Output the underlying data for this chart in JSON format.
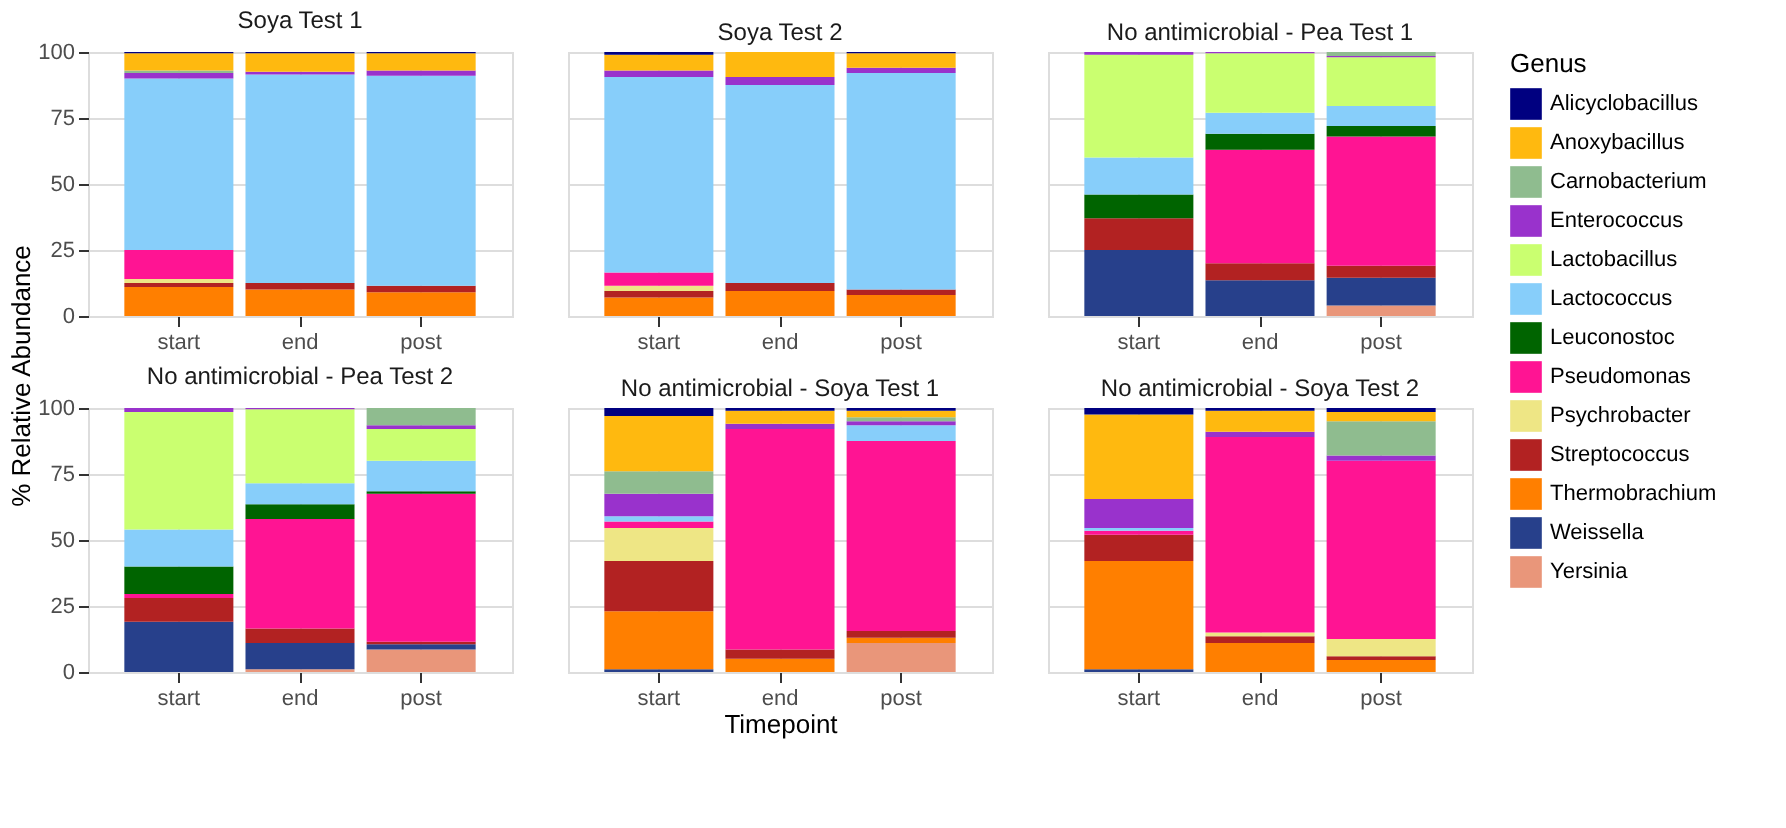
{
  "chart_data": [
    {
      "type": "bar",
      "stacked": true,
      "title": "Soya Test 1",
      "ylabel": "% Relative Abundance",
      "legend_title": "Genus",
      "legend": "right",
      "grid": true,
      "categories": [
        "start",
        "end",
        "post"
      ],
      "ylim": [
        0,
        100
      ],
      "yticks": [
        0,
        25,
        50,
        75,
        100
      ],
      "series": [
        {
          "name": "Yersinia",
          "color": "#e9967a",
          "values": [
            null,
            null,
            null
          ]
        },
        {
          "name": "Weissella",
          "color": "#27408b",
          "values": [
            null,
            null,
            null
          ]
        },
        {
          "name": "Thermobrachium",
          "color": "#ff7f00",
          "values": [
            11,
            10,
            9
          ]
        },
        {
          "name": "Streptococcus",
          "color": "#b22222",
          "values": [
            1.5,
            2.5,
            2.5
          ]
        },
        {
          "name": "Psychrobacter",
          "color": "#eee685",
          "values": [
            1.5,
            null,
            null
          ]
        },
        {
          "name": "Pseudomonas",
          "color": "#ff1493",
          "values": [
            11,
            null,
            null
          ]
        },
        {
          "name": "Leuconostoc",
          "color": "#006400",
          "values": [
            null,
            null,
            null
          ]
        },
        {
          "name": "Lactococcus",
          "color": "#87cefa",
          "values": [
            65,
            79,
            79.5
          ]
        },
        {
          "name": "Lactobacillus",
          "color": "#caff70",
          "values": [
            null,
            null,
            null
          ]
        },
        {
          "name": "Enterococcus",
          "color": "#9932cc",
          "values": [
            2,
            1,
            2
          ]
        },
        {
          "name": "Carnobacterium",
          "color": "#8fbc8f",
          "values": [
            1,
            null,
            null
          ]
        },
        {
          "name": "Anoxybacillus",
          "color": "#ffb90f",
          "values": [
            6.5,
            7,
            6.5
          ]
        },
        {
          "name": "Alicyclobacillus",
          "color": "#000080",
          "values": [
            0.5,
            0.5,
            0.5
          ]
        }
      ]
    },
    {
      "type": "bar",
      "stacked": true,
      "title": "Soya Test 2",
      "grid": true,
      "tick_labels": "x",
      "categories": [
        "start",
        "end",
        "post"
      ],
      "ylim": [
        0,
        100
      ],
      "yticks": [
        0,
        25,
        50,
        75,
        100
      ],
      "series": [
        {
          "color": "#ff7f00",
          "values": [
            7,
            9.5,
            8
          ]
        },
        {
          "color": "#b22222",
          "values": [
            2.5,
            3,
            2
          ]
        },
        {
          "color": "#eee685",
          "values": [
            2,
            null,
            null
          ]
        },
        {
          "color": "#ff1493",
          "values": [
            5,
            null,
            null
          ]
        },
        {
          "color": "#87cefa",
          "values": [
            74,
            75,
            82
          ]
        },
        {
          "color": "#9932cc",
          "values": [
            2.5,
            3,
            2
          ]
        },
        {
          "color": "#ffb90f",
          "values": [
            6,
            9.5,
            5.5
          ]
        },
        {
          "color": "#000080",
          "values": [
            1,
            null,
            0.5
          ]
        }
      ]
    },
    {
      "type": "bar",
      "stacked": true,
      "title": "No antimicrobial - Pea Test 1",
      "grid": true,
      "tick_labels": "x",
      "categories": [
        "start",
        "end",
        "post"
      ],
      "ylim": [
        0,
        100
      ],
      "yticks": [
        0,
        25,
        50,
        75,
        100
      ],
      "series": [
        {
          "color": "#e9967a",
          "values": [
            null,
            null,
            4
          ]
        },
        {
          "color": "#27408b",
          "values": [
            25,
            13.5,
            10.5
          ]
        },
        {
          "color": "#b22222",
          "values": [
            12,
            6.5,
            4.5
          ]
        },
        {
          "color": "#ff1493",
          "values": [
            null,
            43,
            49
          ]
        },
        {
          "color": "#006400",
          "values": [
            9,
            6,
            4
          ]
        },
        {
          "color": "#87cefa",
          "values": [
            14,
            8,
            7.5
          ]
        },
        {
          "color": "#caff70",
          "values": [
            39,
            22.5,
            18.5
          ]
        },
        {
          "color": "#9932cc",
          "values": [
            1,
            0.5,
            0.5
          ]
        },
        {
          "color": "#8fbc8f",
          "values": [
            null,
            null,
            1.5
          ]
        }
      ]
    },
    {
      "type": "bar",
      "stacked": true,
      "title": "No antimicrobial - Pea Test 2",
      "grid": true,
      "categories": [
        "start",
        "end",
        "post"
      ],
      "ylim": [
        0,
        100
      ],
      "yticks": [
        0,
        25,
        50,
        75,
        100
      ],
      "series": [
        {
          "color": "#e9967a",
          "values": [
            null,
            1,
            8.5
          ]
        },
        {
          "color": "#27408b",
          "values": [
            19,
            10,
            2
          ]
        },
        {
          "color": "#b22222",
          "values": [
            9,
            5.5,
            1
          ]
        },
        {
          "color": "#ff1493",
          "values": [
            1.5,
            41.5,
            56
          ]
        },
        {
          "color": "#006400",
          "values": [
            10.5,
            5.5,
            1
          ]
        },
        {
          "color": "#87cefa",
          "values": [
            14,
            8,
            11.5
          ]
        },
        {
          "color": "#caff70",
          "values": [
            44.5,
            28,
            12
          ]
        },
        {
          "color": "#9932cc",
          "values": [
            1.5,
            0.5,
            1.5
          ]
        },
        {
          "color": "#8fbc8f",
          "values": [
            null,
            null,
            6.5
          ]
        }
      ]
    },
    {
      "type": "bar",
      "stacked": true,
      "title": "No antimicrobial - Soya Test 1",
      "xlabel": "Timepoint",
      "grid": true,
      "tick_labels": "x",
      "categories": [
        "start",
        "end",
        "post"
      ],
      "ylim": [
        0,
        100
      ],
      "yticks": [
        0,
        25,
        50,
        75,
        100
      ],
      "series": [
        {
          "color": "#e9967a",
          "values": [
            null,
            null,
            11
          ]
        },
        {
          "color": "#27408b",
          "values": [
            1,
            null,
            null
          ]
        },
        {
          "color": "#ff7f00",
          "values": [
            22,
            5,
            2
          ]
        },
        {
          "color": "#b22222",
          "values": [
            19,
            3.5,
            2.5
          ]
        },
        {
          "color": "#eee685",
          "values": [
            12.5,
            null,
            null
          ]
        },
        {
          "color": "#ff1493",
          "values": [
            2.5,
            83.5,
            72
          ]
        },
        {
          "color": "#87cefa",
          "values": [
            2,
            null,
            6
          ]
        },
        {
          "color": "#9932cc",
          "values": [
            8.5,
            2,
            1.5
          ]
        },
        {
          "color": "#8fbc8f",
          "values": [
            8.5,
            null,
            1.5
          ]
        },
        {
          "color": "#ffb90f",
          "values": [
            21,
            5,
            2.5
          ]
        },
        {
          "color": "#000080",
          "values": [
            3,
            1,
            1
          ]
        }
      ]
    },
    {
      "type": "bar",
      "stacked": true,
      "title": "No antimicrobial - Soya Test 2",
      "grid": true,
      "tick_labels": "x",
      "categories": [
        "start",
        "end",
        "post"
      ],
      "ylim": [
        0,
        100
      ],
      "yticks": [
        0,
        25,
        50,
        75,
        100
      ],
      "series": [
        {
          "color": "#27408b",
          "values": [
            1,
            null,
            null
          ]
        },
        {
          "color": "#ff7f00",
          "values": [
            41,
            11,
            4.5
          ]
        },
        {
          "color": "#b22222",
          "values": [
            10,
            2.5,
            1.5
          ]
        },
        {
          "color": "#eee685",
          "values": [
            null,
            1.5,
            6.5
          ]
        },
        {
          "color": "#ff1493",
          "values": [
            1.5,
            74,
            67.5
          ]
        },
        {
          "color": "#87cefa",
          "values": [
            1,
            null,
            null
          ]
        },
        {
          "color": "#9932cc",
          "values": [
            11,
            2,
            2
          ]
        },
        {
          "color": "#8fbc8f",
          "values": [
            null,
            null,
            13
          ]
        },
        {
          "color": "#ffb90f",
          "values": [
            32,
            8,
            3.5
          ]
        },
        {
          "color": "#000080",
          "values": [
            2.5,
            1,
            1.5
          ]
        }
      ]
    }
  ]
}
